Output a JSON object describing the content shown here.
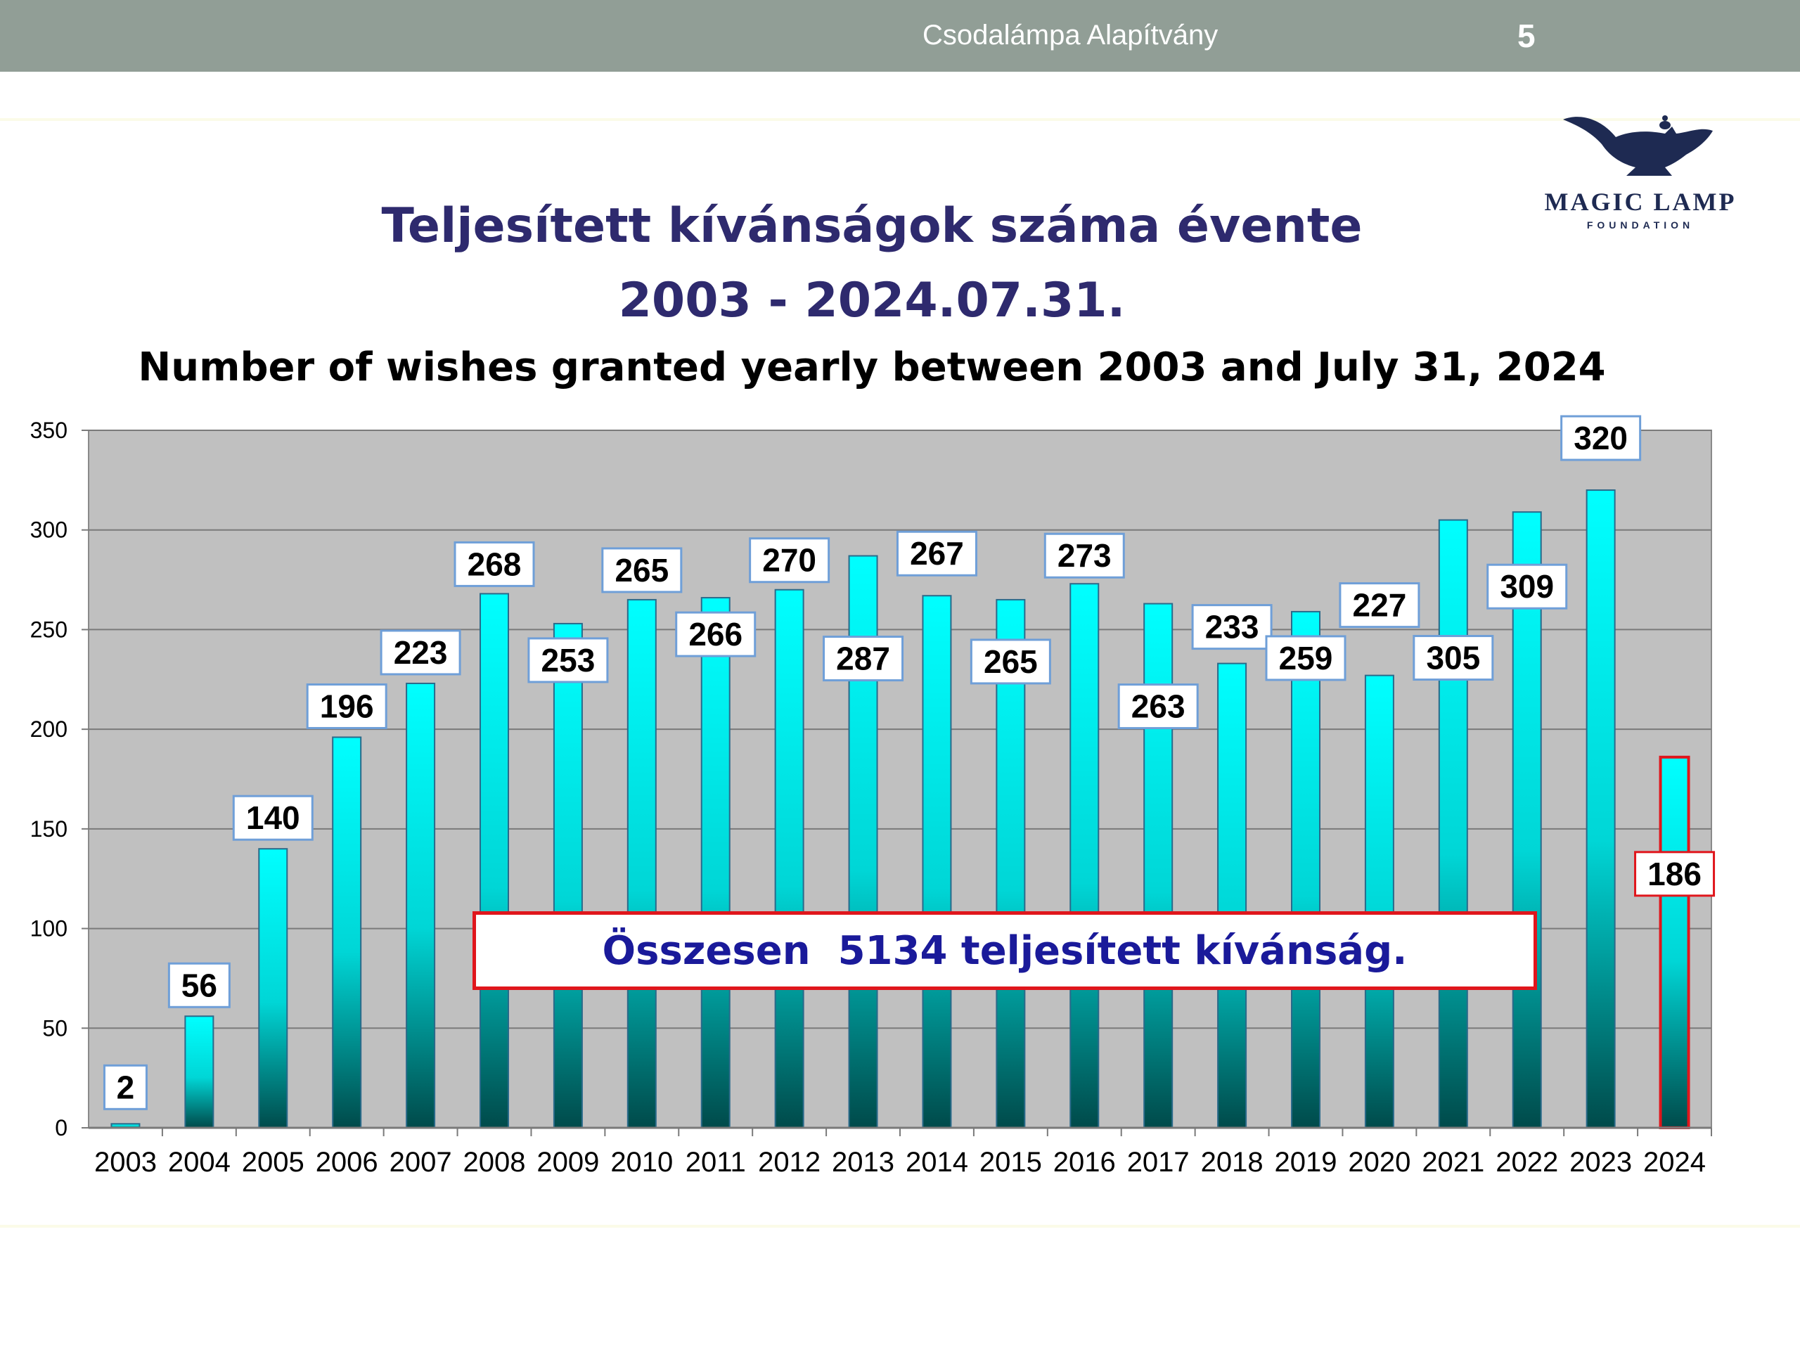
{
  "header": {
    "organization": "Csodalámpa Alapítvány",
    "page_number": "5",
    "bar_color": "#919e96"
  },
  "logo": {
    "name": "MAGIC LAMP",
    "subtitle": "FOUNDATION",
    "icon": "magic-lamp-icon"
  },
  "title": {
    "line1": "Teljesített kívánságok száma évente",
    "line2": "2003 - 2024.07.31.",
    "line3": "Number of wishes granted yearly between 2003 and July 31, 2024"
  },
  "total_note": "Összesen  5134 teljesített kívánság.",
  "chart_data": {
    "type": "bar",
    "categories": [
      "2003",
      "2004",
      "2005",
      "2006",
      "2007",
      "2008",
      "2009",
      "2010",
      "2011",
      "2012",
      "2013",
      "2014",
      "2015",
      "2016",
      "2017",
      "2018",
      "2019",
      "2020",
      "2021",
      "2022",
      "2023",
      "2024"
    ],
    "values": [
      2,
      56,
      140,
      196,
      223,
      268,
      253,
      265,
      266,
      270,
      287,
      267,
      265,
      273,
      263,
      233,
      259,
      227,
      305,
      309,
      320,
      186
    ],
    "ylim": [
      0,
      350
    ],
    "yticks": [
      0,
      50,
      100,
      150,
      200,
      250,
      300,
      350
    ],
    "grid": true,
    "legend": "none",
    "colors": {
      "plot_background": "#c0c0c0",
      "bar_top": "#00ffff",
      "bar_bottom": "#005a5a",
      "label_border": "#6f9fd8",
      "highlight_label_border": "#e0161c",
      "highlight_bar_border": "#e0161c"
    },
    "highlighted_category": "2024"
  }
}
